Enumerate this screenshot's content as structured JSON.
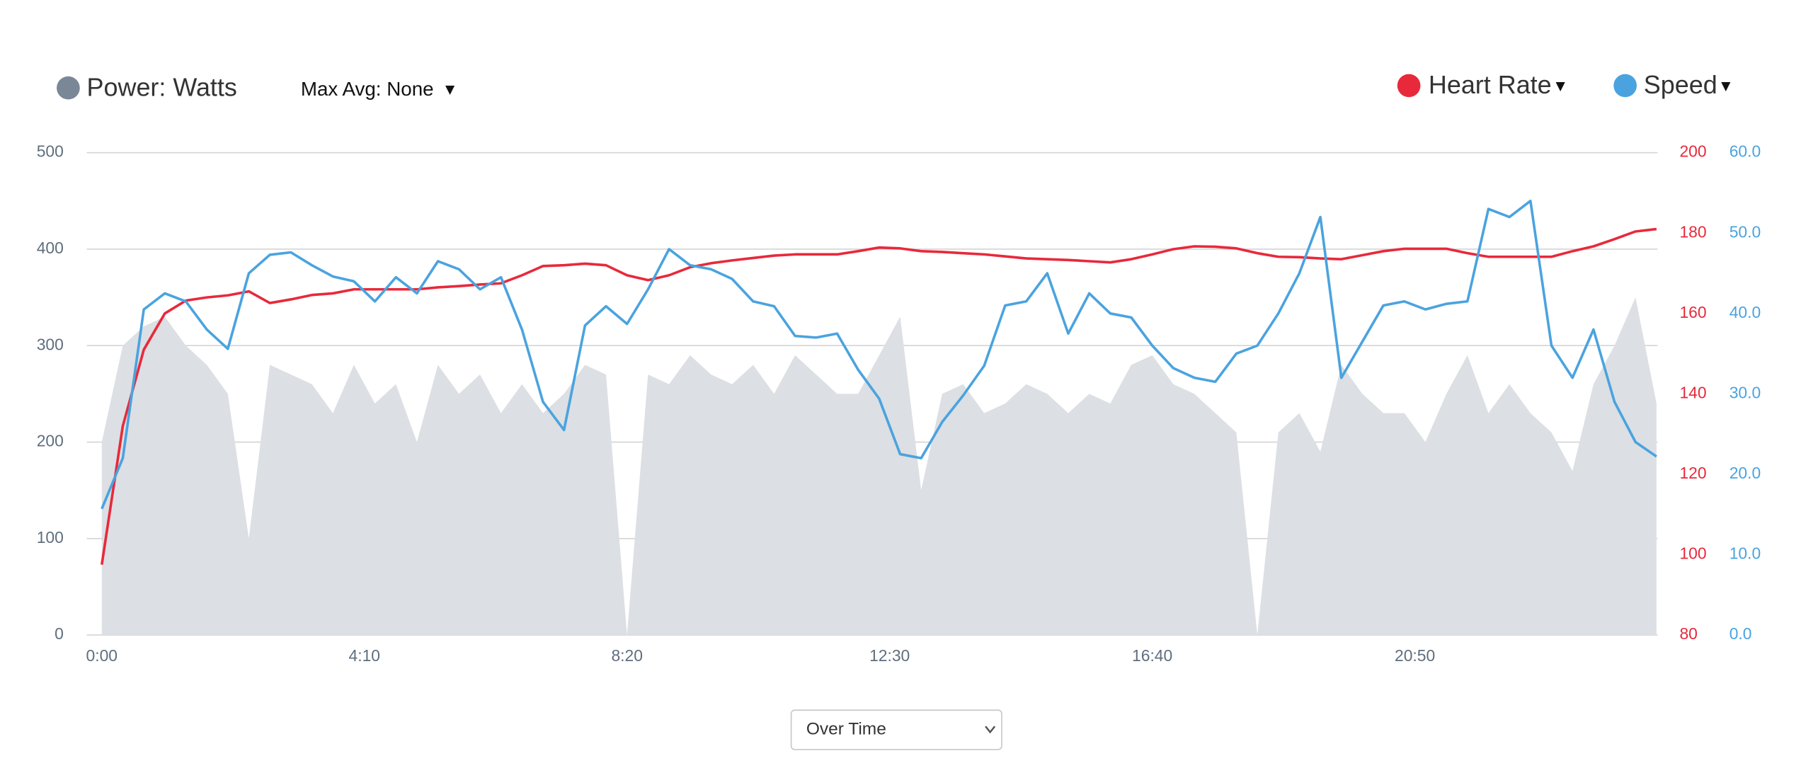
{
  "chart_data": {
    "type": "line",
    "max_avg_label": "Max Avg: None",
    "view_select": "Over Time",
    "x": [
      0,
      20,
      40,
      60,
      80,
      100,
      120,
      140,
      160,
      180,
      200,
      220,
      240,
      260,
      280,
      300,
      320,
      340,
      360,
      380,
      400,
      420,
      440,
      460,
      480,
      500,
      520,
      540,
      560,
      580,
      600,
      620,
      640,
      660,
      680,
      700,
      720,
      740,
      760,
      780,
      800,
      820,
      840,
      860,
      880,
      900,
      920,
      940,
      960,
      980,
      1000,
      1020,
      1040,
      1060,
      1080,
      1100,
      1120,
      1140,
      1160,
      1180,
      1200,
      1220,
      1240,
      1260,
      1280,
      1300,
      1320,
      1340,
      1360,
      1380,
      1400,
      1420,
      1440,
      1460,
      1480
    ],
    "xlim": [
      0,
      1481
    ],
    "xticks": [
      {
        "value": 0,
        "label": "0:00"
      },
      {
        "value": 250,
        "label": "4:10"
      },
      {
        "value": 500,
        "label": "8:20"
      },
      {
        "value": 750,
        "label": "12:30"
      },
      {
        "value": 1000,
        "label": "16:40"
      },
      {
        "value": 1250,
        "label": "20:50"
      }
    ],
    "ylim": [
      0,
      500
    ],
    "yticks": [
      0,
      100,
      200,
      300,
      400,
      500
    ],
    "y2lim": [
      80,
      200
    ],
    "y2ticks": [
      80,
      100,
      120,
      140,
      160,
      180,
      200
    ],
    "y3lim": [
      0,
      60
    ],
    "y3ticks": [
      {
        "value": 0,
        "label": "0.0"
      },
      {
        "value": 10,
        "label": "10.0"
      },
      {
        "value": 20,
        "label": "20.0"
      },
      {
        "value": 30,
        "label": "30.0"
      },
      {
        "value": 40,
        "label": "40.0"
      },
      {
        "value": 50,
        "label": "50.0"
      },
      {
        "value": 60,
        "label": "60.0"
      }
    ],
    "grid": true,
    "series": [
      {
        "name": "Power: Watts",
        "color": "#dcdfe3",
        "marker_color": "#7a8797",
        "area": true,
        "values": [
          200,
          300,
          320,
          330,
          300,
          280,
          250,
          100,
          280,
          270,
          260,
          230,
          280,
          240,
          260,
          200,
          280,
          250,
          270,
          230,
          260,
          230,
          250,
          280,
          270,
          0,
          270,
          260,
          290,
          270,
          260,
          280,
          250,
          290,
          270,
          250,
          250,
          290,
          330,
          150,
          250,
          260,
          230,
          240,
          260,
          250,
          230,
          250,
          240,
          280,
          290,
          260,
          250,
          230,
          210,
          0,
          210,
          230,
          190,
          280,
          250,
          230,
          230,
          200,
          250,
          290,
          230,
          260,
          230,
          210,
          170,
          260,
          300,
          350,
          240
        ]
      },
      {
        "name": "Heart Rate",
        "color": "#e8293b",
        "axis": "y2",
        "values": [
          97.5,
          132,
          151,
          160,
          163.2,
          164,
          164.5,
          165.5,
          162.6,
          163.5,
          164.6,
          165,
          166,
          166,
          166,
          166,
          166.5,
          166.8,
          167.2,
          167.5,
          169.5,
          171.8,
          172,
          172.4,
          172,
          169.5,
          168.3,
          169.5,
          171.5,
          172.5,
          173.2,
          173.8,
          174.4,
          174.7,
          174.7,
          174.7,
          175.5,
          176.4,
          176.2,
          175.5,
          175.3,
          175,
          174.7,
          174.2,
          173.7,
          173.5,
          173.3,
          173,
          172.7,
          173.5,
          174.7,
          176,
          176.7,
          176.6,
          176.2,
          175,
          174.1,
          174,
          173.7,
          173.5,
          174.5,
          175.5,
          176.1,
          176.1,
          176.1,
          175,
          174.1,
          174.1,
          174.1,
          174.1,
          175.5,
          176.7,
          178.5,
          180.4,
          181
        ]
      },
      {
        "name": "Speed",
        "color": "#4aa3df",
        "axis": "y3",
        "values": [
          15.7,
          22,
          40.5,
          42.5,
          41.5,
          38,
          35.6,
          45,
          47.3,
          47.6,
          46,
          44.6,
          44,
          41.5,
          44.5,
          42.5,
          46.5,
          45.5,
          43,
          44.5,
          38,
          29,
          25.5,
          38.5,
          40.9,
          38.7,
          43,
          48,
          46,
          45.5,
          44.3,
          41.5,
          40.9,
          37.2,
          37,
          37.5,
          33,
          29.4,
          22.5,
          22,
          26.5,
          29.8,
          33.5,
          41,
          41.5,
          45,
          37.5,
          42.5,
          40,
          39.5,
          36,
          33.2,
          32,
          31.5,
          35,
          36,
          40,
          45,
          52,
          32,
          36.5,
          41,
          41.5,
          40.5,
          41.2,
          41.5,
          53,
          52,
          54,
          36,
          32,
          38,
          29,
          24,
          22.2
        ]
      }
    ]
  }
}
